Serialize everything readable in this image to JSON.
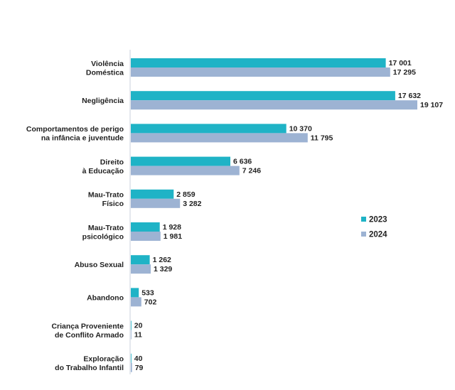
{
  "chart_data": {
    "type": "bar",
    "orientation": "horizontal",
    "categories": [
      [
        "Violência",
        "Doméstica"
      ],
      [
        "Negligência"
      ],
      [
        "Comportamentos de perigo",
        "na infância e juventude"
      ],
      [
        "Direito",
        "à Educação"
      ],
      [
        "Mau-Trato",
        "Físico"
      ],
      [
        "Mau-Trato",
        "psicológico"
      ],
      [
        "Abuso Sexual"
      ],
      [
        "Abandono"
      ],
      [
        "Criança Proveniente",
        "de Conflito Armado"
      ],
      [
        "Exploração",
        "do Trabalho Infantil"
      ]
    ],
    "series": [
      {
        "name": "2023",
        "color": "#1fb3c6",
        "values": [
          17001,
          17632,
          10370,
          6636,
          2859,
          1928,
          1262,
          533,
          20,
          40
        ],
        "labels": [
          "17 001",
          "17 632",
          "10 370",
          "6 636",
          "2 859",
          "1 928",
          "1 262",
          "533",
          "20",
          "40"
        ]
      },
      {
        "name": "2024",
        "color": "#9db3d3",
        "values": [
          17295,
          19107,
          11795,
          7246,
          3282,
          1981,
          1329,
          702,
          11,
          79
        ],
        "labels": [
          "17 295",
          "19 107",
          "11 795",
          "7 246",
          "3 282",
          "1 981",
          "1 329",
          "702",
          "11",
          "79"
        ]
      }
    ],
    "xlim": [
      0,
      19107
    ],
    "grid": false,
    "legend": "right"
  }
}
